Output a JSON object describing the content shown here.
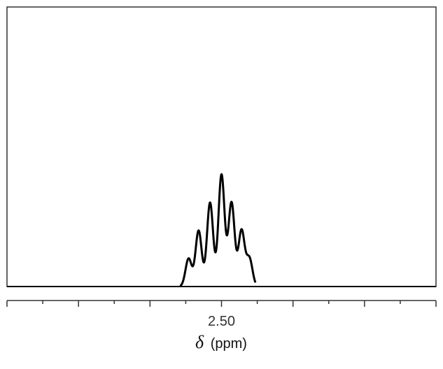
{
  "chart_data": {
    "type": "line",
    "title": "",
    "xlabel": {
      "symbol": "δ",
      "unit": "(ppm)"
    },
    "ylabel": "",
    "x_reversed": true,
    "xlim": [
      2.8,
      2.2
    ],
    "ylim": [
      0,
      1.0
    ],
    "grid": false,
    "legend": "none",
    "x_ticks": [
      2.8,
      2.75,
      2.7,
      2.65,
      2.6,
      2.55,
      2.5,
      2.45,
      2.4,
      2.35,
      2.3,
      2.25,
      2.2
    ],
    "x_tick_labels": [
      {
        "value": 2.5,
        "label": "2.50"
      }
    ],
    "peaks": [
      {
        "x": 2.546,
        "height": 0.1
      },
      {
        "x": 2.532,
        "height": 0.2
      },
      {
        "x": 2.516,
        "height": 0.3
      },
      {
        "x": 2.5,
        "height": 0.4
      },
      {
        "x": 2.486,
        "height": 0.3
      },
      {
        "x": 2.472,
        "height": 0.2
      },
      {
        "x": 2.461,
        "height": 0.1
      }
    ],
    "line_color": "#000000"
  }
}
